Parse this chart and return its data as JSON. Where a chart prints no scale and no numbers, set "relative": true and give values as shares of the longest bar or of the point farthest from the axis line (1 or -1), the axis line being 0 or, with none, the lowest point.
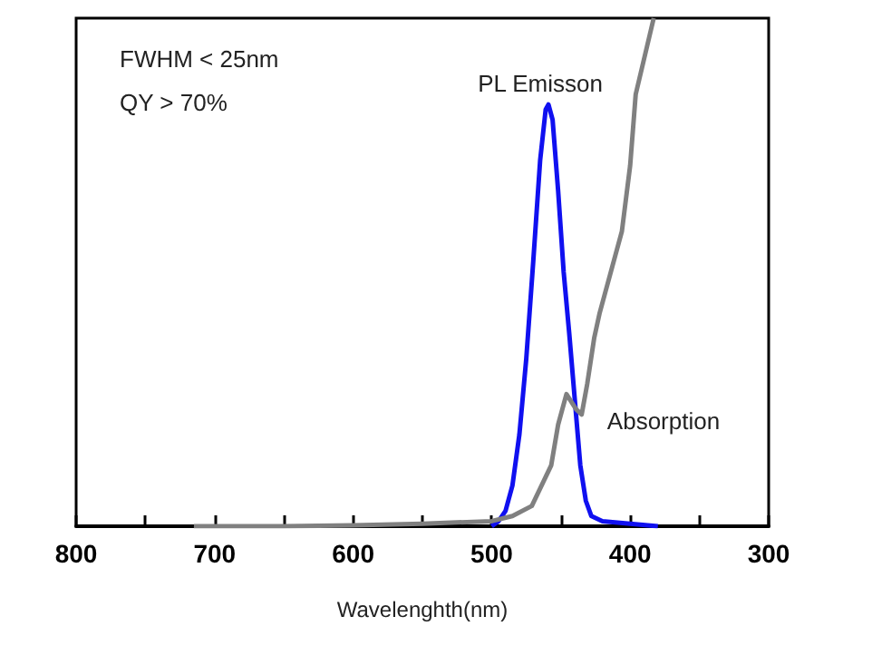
{
  "chart_data": {
    "type": "line",
    "xlabel": "Wavelenghth(nm)",
    "relative": true,
    "xlim": [
      800,
      300
    ],
    "xticks": [
      800,
      {
        "value": 750,
        "label": null
      },
      700,
      {
        "value": 650,
        "label": null
      },
      600,
      {
        "value": 550,
        "label": null
      },
      500,
      {
        "value": 450,
        "label": null
      },
      400,
      {
        "value": 350,
        "label": null
      },
      300
    ],
    "series": [
      {
        "name": "PL Emisson",
        "color": "#1010f0",
        "x": [
          500,
          495,
          490,
          485,
          480,
          475,
          470,
          465,
          461,
          459,
          456,
          452,
          448,
          444,
          440,
          436,
          432,
          428,
          420,
          400,
          380
        ],
        "values": [
          0,
          0.01,
          0.03,
          0.08,
          0.18,
          0.33,
          0.52,
          0.72,
          0.82,
          0.83,
          0.8,
          0.66,
          0.5,
          0.38,
          0.25,
          0.12,
          0.05,
          0.02,
          0.01,
          0.005,
          0
        ]
      },
      {
        "name": "Absorption",
        "color": "#808080",
        "x": [
          715,
          650,
          600,
          550,
          500,
          485,
          471,
          457,
          452,
          446,
          439,
          435,
          431,
          426,
          422,
          413,
          406,
          400,
          396,
          383
        ],
        "values": [
          0,
          0,
          0.002,
          0.005,
          0.01,
          0.02,
          0.04,
          0.12,
          0.2,
          0.26,
          0.23,
          0.22,
          0.28,
          0.37,
          0.42,
          0.51,
          0.58,
          0.71,
          0.85,
          1.0
        ]
      }
    ],
    "annotations": [
      "FWHM < 25nm",
      "QY > 70%"
    ]
  }
}
